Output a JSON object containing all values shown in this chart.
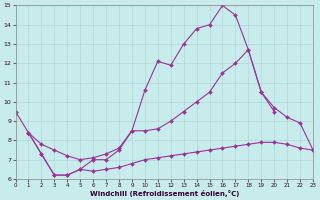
{
  "xlabel": "Windchill (Refroidissement éolien,°C)",
  "xlim": [
    0,
    23
  ],
  "ylim": [
    6,
    15
  ],
  "xticks": [
    0,
    1,
    2,
    3,
    4,
    5,
    6,
    7,
    8,
    9,
    10,
    11,
    12,
    13,
    14,
    15,
    16,
    17,
    18,
    19,
    20,
    21,
    22,
    23
  ],
  "yticks": [
    6,
    7,
    8,
    9,
    10,
    11,
    12,
    13,
    14,
    15
  ],
  "background_color": "#c8ecec",
  "grid_color": "#b0d8d8",
  "line_color": "#993399",
  "top_x": [
    0,
    1,
    2,
    3,
    4,
    5,
    6,
    7,
    8,
    9,
    10,
    11,
    12,
    13,
    14,
    15,
    16,
    17,
    18,
    19,
    20
  ],
  "top_y": [
    9.5,
    8.4,
    7.3,
    6.2,
    6.2,
    6.5,
    7.0,
    7.0,
    7.5,
    8.5,
    10.6,
    12.1,
    11.9,
    13.0,
    13.8,
    14.0,
    15.0,
    14.5,
    12.7,
    10.5,
    9.5
  ],
  "mid_x": [
    1,
    2,
    3,
    4,
    5,
    6,
    7,
    8,
    9,
    10,
    11,
    12,
    13,
    14,
    15,
    16,
    17,
    18,
    19,
    20,
    21,
    22,
    23
  ],
  "mid_y": [
    8.4,
    7.8,
    7.5,
    7.2,
    7.0,
    7.1,
    7.3,
    7.6,
    8.5,
    8.5,
    8.6,
    9.0,
    9.5,
    10.0,
    10.5,
    11.5,
    12.0,
    12.7,
    10.5,
    9.7,
    9.2,
    8.9,
    7.5
  ],
  "bot_x": [
    1,
    2,
    3,
    4,
    5,
    6,
    7,
    8,
    9,
    10,
    11,
    12,
    13,
    14,
    15,
    16,
    17,
    18,
    19,
    20,
    21,
    22,
    23
  ],
  "bot_y": [
    8.4,
    7.3,
    6.2,
    6.2,
    6.5,
    6.4,
    6.5,
    6.6,
    6.8,
    7.0,
    7.1,
    7.2,
    7.3,
    7.4,
    7.5,
    7.6,
    7.7,
    7.8,
    7.9,
    7.9,
    7.8,
    7.6,
    7.5
  ]
}
